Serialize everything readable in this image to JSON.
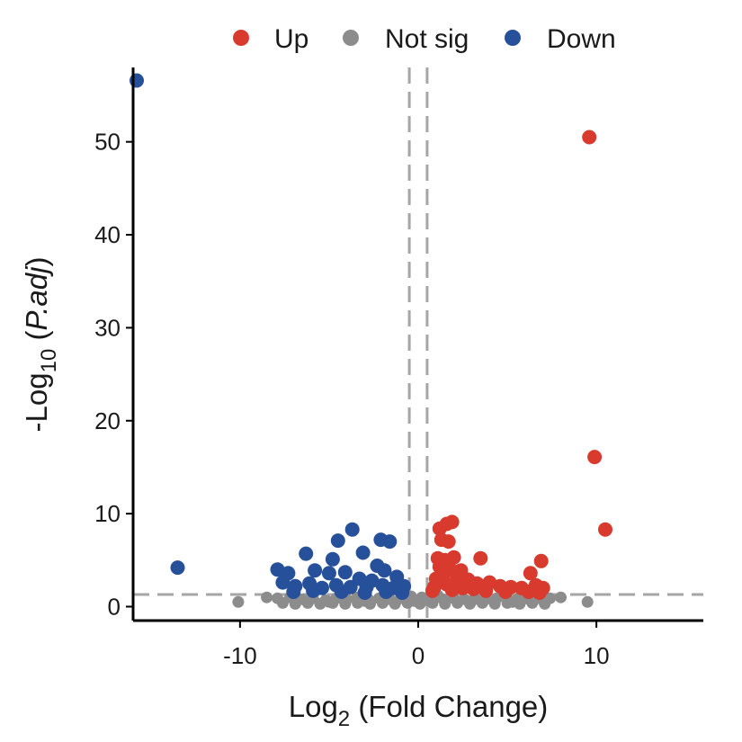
{
  "chart_data": {
    "type": "scatter",
    "xlabel": "Log2 (Fold Change)",
    "xlabel_main": "Log",
    "xlabel_sub": "2",
    "xlabel_rest": " (Fold Change)",
    "ylabel": "-Log10 (P.adj)",
    "ylabel_main": "-Log",
    "ylabel_sub": "10",
    "ylabel_open": " (",
    "ylabel_italic": "P.adj",
    "ylabel_close": ")",
    "xlim": [
      -16,
      16
    ],
    "ylim": [
      -1.5,
      58
    ],
    "x_ticks": [
      -10,
      0,
      10
    ],
    "x_tick_labels": [
      "-10",
      "0",
      "10"
    ],
    "y_ticks": [
      0,
      10,
      20,
      30,
      40,
      50
    ],
    "y_tick_labels": [
      "0",
      "10",
      "20",
      "30",
      "40",
      "50"
    ],
    "grid": false,
    "legend_position": "top",
    "cutoffs": {
      "x": [
        -0.5,
        0.5
      ],
      "y": 1.3
    },
    "colors": {
      "Up": "#d93a2e",
      "Not sig": "#8c8c8c",
      "Down": "#27509b",
      "cutoff": "#a6a6a6"
    },
    "series": [
      {
        "name": "Up",
        "points": [
          [
            9.6,
            50.5
          ],
          [
            9.9,
            16.1
          ],
          [
            10.5,
            8.3
          ],
          [
            1.2,
            8.4
          ],
          [
            1.6,
            8.9
          ],
          [
            1.9,
            9.1
          ],
          [
            1.3,
            7.2
          ],
          [
            1.7,
            7.0
          ],
          [
            1.1,
            5.2
          ],
          [
            1.5,
            5.0
          ],
          [
            2.0,
            5.3
          ],
          [
            1.2,
            4.3
          ],
          [
            1.8,
            4.0
          ],
          [
            2.4,
            3.9
          ],
          [
            3.5,
            5.2
          ],
          [
            6.9,
            4.9
          ],
          [
            6.3,
            3.6
          ],
          [
            7.0,
            2.0
          ],
          [
            1.0,
            3.0
          ],
          [
            1.4,
            3.3
          ],
          [
            2.2,
            3.1
          ],
          [
            2.8,
            2.9
          ],
          [
            3.3,
            2.5
          ],
          [
            4.0,
            2.6
          ],
          [
            4.6,
            2.2
          ],
          [
            5.2,
            2.1
          ],
          [
            5.8,
            2.0
          ],
          [
            6.6,
            2.3
          ],
          [
            0.9,
            2.1
          ],
          [
            1.6,
            2.4
          ],
          [
            2.5,
            2.0
          ],
          [
            3.1,
            1.9
          ],
          [
            0.8,
            1.7
          ],
          [
            1.9,
            1.8
          ],
          [
            3.8,
            1.7
          ],
          [
            4.9,
            1.6
          ],
          [
            6.2,
            1.6
          ],
          [
            6.8,
            1.5
          ]
        ]
      },
      {
        "name": "Not sig",
        "points": [
          [
            -10.1,
            0.5
          ],
          [
            -8.5,
            1.0
          ],
          [
            -7.9,
            0.9
          ],
          [
            -7.2,
            1.0
          ],
          [
            -6.5,
            0.8
          ],
          [
            -5.9,
            0.9
          ],
          [
            -5.2,
            0.7
          ],
          [
            -4.6,
            0.9
          ],
          [
            -4.0,
            0.8
          ],
          [
            -3.4,
            1.0
          ],
          [
            -2.8,
            0.8
          ],
          [
            -2.2,
            0.9
          ],
          [
            -1.6,
            0.8
          ],
          [
            -1.0,
            0.9
          ],
          [
            -0.4,
            1.1
          ],
          [
            0.2,
            1.0
          ],
          [
            0.8,
            0.9
          ],
          [
            1.4,
            0.8
          ],
          [
            2.0,
            0.9
          ],
          [
            2.6,
            0.8
          ],
          [
            3.2,
            0.9
          ],
          [
            3.8,
            0.8
          ],
          [
            4.4,
            0.9
          ],
          [
            5.0,
            0.8
          ],
          [
            5.6,
            0.9
          ],
          [
            6.2,
            0.8
          ],
          [
            6.8,
            0.9
          ],
          [
            7.4,
            0.9
          ],
          [
            8.0,
            1.0
          ],
          [
            9.5,
            0.5
          ],
          [
            -7.6,
            0.4
          ],
          [
            -6.9,
            0.3
          ],
          [
            -6.2,
            0.4
          ],
          [
            -5.5,
            0.3
          ],
          [
            -4.8,
            0.4
          ],
          [
            -4.1,
            0.3
          ],
          [
            -3.4,
            0.4
          ],
          [
            -2.7,
            0.3
          ],
          [
            -2.0,
            0.4
          ],
          [
            -1.3,
            0.3
          ],
          [
            -0.6,
            0.4
          ],
          [
            0.1,
            0.3
          ],
          [
            0.8,
            0.4
          ],
          [
            1.5,
            0.3
          ],
          [
            2.2,
            0.4
          ],
          [
            2.9,
            0.3
          ],
          [
            3.6,
            0.4
          ],
          [
            4.3,
            0.3
          ],
          [
            5.0,
            0.4
          ],
          [
            5.7,
            0.3
          ],
          [
            6.4,
            0.4
          ],
          [
            7.1,
            0.3
          ],
          [
            -0.2,
            0.6
          ],
          [
            0.5,
            0.7
          ],
          [
            -1.8,
            1.2
          ],
          [
            1.1,
            1.2
          ],
          [
            -3.0,
            0.6
          ],
          [
            3.0,
            0.6
          ],
          [
            -5.0,
            0.5
          ],
          [
            5.3,
            0.5
          ]
        ]
      },
      {
        "name": "Down",
        "points": [
          [
            -15.8,
            56.6
          ],
          [
            -13.5,
            4.2
          ],
          [
            -3.7,
            8.3
          ],
          [
            -4.5,
            7.1
          ],
          [
            -2.1,
            7.2
          ],
          [
            -1.6,
            7.0
          ],
          [
            -6.3,
            5.7
          ],
          [
            -3.1,
            5.8
          ],
          [
            -4.8,
            5.1
          ],
          [
            -7.9,
            4.0
          ],
          [
            -7.3,
            3.6
          ],
          [
            -5.8,
            3.9
          ],
          [
            -5.0,
            3.6
          ],
          [
            -4.1,
            3.7
          ],
          [
            -2.3,
            4.4
          ],
          [
            -1.9,
            3.9
          ],
          [
            -3.3,
            3.0
          ],
          [
            -2.6,
            2.8
          ],
          [
            -1.2,
            3.2
          ],
          [
            -7.6,
            2.6
          ],
          [
            -6.9,
            2.2
          ],
          [
            -6.1,
            2.5
          ],
          [
            -5.4,
            2.0
          ],
          [
            -4.6,
            2.3
          ],
          [
            -3.8,
            2.1
          ],
          [
            -2.9,
            2.1
          ],
          [
            -2.0,
            2.3
          ],
          [
            -1.4,
            2.0
          ],
          [
            -0.8,
            2.2
          ],
          [
            -7.0,
            1.6
          ],
          [
            -5.9,
            1.7
          ],
          [
            -4.3,
            1.6
          ],
          [
            -3.0,
            1.5
          ],
          [
            -1.8,
            1.6
          ],
          [
            -0.9,
            1.5
          ]
        ]
      }
    ]
  }
}
